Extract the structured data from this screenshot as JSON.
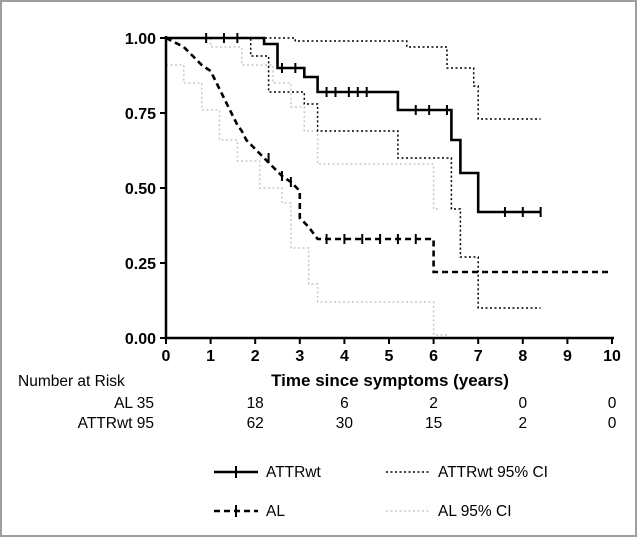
{
  "colors": {
    "attr": "#000000",
    "al": "#000000",
    "attr_ci": "#000000",
    "al_ci": "#c8c8c8",
    "frame": "#9e9e9e"
  },
  "chart_data": {
    "type": "line",
    "title": "",
    "xlabel": "Time since symptoms (years)",
    "ylabel": "",
    "xlim": [
      0,
      10
    ],
    "ylim": [
      0,
      1
    ],
    "x_ticks": [
      "0",
      "1",
      "2",
      "3",
      "4",
      "5",
      "6",
      "7",
      "8",
      "9",
      "10"
    ],
    "y_ticks": [
      "0.00",
      "0.25",
      "0.50",
      "0.75",
      "1.00"
    ],
    "series": [
      {
        "name": "ATTRwt",
        "style": "solid-thick",
        "points": [
          [
            0,
            1.0
          ],
          [
            2.2,
            1.0
          ],
          [
            2.2,
            0.98
          ],
          [
            2.5,
            0.98
          ],
          [
            2.5,
            0.9
          ],
          [
            3.1,
            0.9
          ],
          [
            3.1,
            0.87
          ],
          [
            3.4,
            0.87
          ],
          [
            3.4,
            0.82
          ],
          [
            5.2,
            0.82
          ],
          [
            5.2,
            0.76
          ],
          [
            6.4,
            0.76
          ],
          [
            6.4,
            0.66
          ],
          [
            6.6,
            0.66
          ],
          [
            6.6,
            0.55
          ],
          [
            7.0,
            0.55
          ],
          [
            7.0,
            0.42
          ],
          [
            8.4,
            0.42
          ]
        ],
        "censor_x": [
          0.9,
          1.3,
          1.6,
          2.6,
          2.9,
          3.6,
          3.8,
          4.1,
          4.3,
          4.5,
          5.6,
          5.9,
          6.3,
          7.6,
          8.0,
          8.4
        ]
      },
      {
        "name": "AL",
        "style": "dashed-thick",
        "points": [
          [
            0,
            1.0
          ],
          [
            0.4,
            0.97
          ],
          [
            0.6,
            0.94
          ],
          [
            0.8,
            0.91
          ],
          [
            1.0,
            0.89
          ],
          [
            1.1,
            0.86
          ],
          [
            1.2,
            0.83
          ],
          [
            1.3,
            0.8
          ],
          [
            1.4,
            0.77
          ],
          [
            1.5,
            0.74
          ],
          [
            1.6,
            0.71
          ],
          [
            1.7,
            0.69
          ],
          [
            1.8,
            0.66
          ],
          [
            2.0,
            0.63
          ],
          [
            2.2,
            0.6
          ],
          [
            2.4,
            0.57
          ],
          [
            2.6,
            0.54
          ],
          [
            2.8,
            0.52
          ],
          [
            3.0,
            0.49
          ],
          [
            3.0,
            0.4
          ],
          [
            3.2,
            0.37
          ],
          [
            3.4,
            0.33
          ],
          [
            6.0,
            0.33
          ],
          [
            6.0,
            0.22
          ],
          [
            10,
            0.22
          ]
        ],
        "censor_x": [
          2.3,
          2.6,
          2.8,
          3.6,
          4.0,
          4.4,
          4.8,
          5.2,
          5.6
        ]
      },
      {
        "name": "ATTRwt 95% CI",
        "style": "dotted",
        "lines": [
          [
            [
              0,
              1.0
            ],
            [
              2.9,
              1.0
            ],
            [
              2.9,
              0.99
            ],
            [
              5.4,
              0.99
            ],
            [
              5.4,
              0.97
            ],
            [
              6.3,
              0.97
            ],
            [
              6.3,
              0.9
            ],
            [
              6.9,
              0.9
            ],
            [
              6.9,
              0.84
            ],
            [
              7.0,
              0.84
            ],
            [
              7.0,
              0.73
            ],
            [
              8.4,
              0.73
            ]
          ],
          [
            [
              0,
              1.0
            ],
            [
              1.9,
              1.0
            ],
            [
              1.9,
              0.94
            ],
            [
              2.3,
              0.94
            ],
            [
              2.3,
              0.82
            ],
            [
              3.1,
              0.82
            ],
            [
              3.1,
              0.78
            ],
            [
              3.4,
              0.78
            ],
            [
              3.4,
              0.69
            ],
            [
              5.2,
              0.69
            ],
            [
              5.2,
              0.6
            ],
            [
              6.4,
              0.6
            ],
            [
              6.4,
              0.43
            ],
            [
              6.6,
              0.43
            ],
            [
              6.6,
              0.27
            ],
            [
              7.0,
              0.27
            ],
            [
              7.0,
              0.1
            ],
            [
              8.4,
              0.1
            ]
          ]
        ]
      },
      {
        "name": "AL 95% CI",
        "style": "dotted-grey",
        "lines": [
          [
            [
              0,
              1.0
            ],
            [
              1.0,
              1.0
            ],
            [
              1.0,
              0.97
            ],
            [
              1.7,
              0.97
            ],
            [
              1.7,
              0.91
            ],
            [
              2.4,
              0.91
            ],
            [
              2.4,
              0.85
            ],
            [
              2.8,
              0.85
            ],
            [
              2.8,
              0.77
            ],
            [
              3.1,
              0.77
            ],
            [
              3.1,
              0.69
            ],
            [
              3.4,
              0.69
            ],
            [
              3.4,
              0.58
            ],
            [
              6.0,
              0.58
            ],
            [
              6.0,
              0.43
            ],
            [
              6.1,
              0.43
            ]
          ],
          [
            [
              0,
              0.91
            ],
            [
              0.4,
              0.91
            ],
            [
              0.4,
              0.85
            ],
            [
              0.8,
              0.85
            ],
            [
              0.8,
              0.76
            ],
            [
              1.2,
              0.76
            ],
            [
              1.2,
              0.66
            ],
            [
              1.6,
              0.66
            ],
            [
              1.6,
              0.59
            ],
            [
              2.1,
              0.59
            ],
            [
              2.1,
              0.5
            ],
            [
              2.6,
              0.5
            ],
            [
              2.6,
              0.45
            ],
            [
              2.8,
              0.45
            ],
            [
              2.8,
              0.3
            ],
            [
              3.2,
              0.3
            ],
            [
              3.2,
              0.18
            ],
            [
              3.4,
              0.18
            ],
            [
              3.4,
              0.12
            ],
            [
              6.0,
              0.12
            ],
            [
              6.0,
              0.01
            ],
            [
              6.3,
              0.01
            ]
          ]
        ]
      }
    ],
    "legend": {
      "placement": "bottom",
      "entries": [
        "ATTRwt",
        "ATTRwt 95% CI",
        "AL",
        "AL 95% CI"
      ]
    }
  },
  "risk_table": {
    "header": "Number at Risk",
    "rows": [
      {
        "label": "AL 35",
        "values": [
          "18",
          "6",
          "2",
          "0",
          "0"
        ]
      },
      {
        "label": "ATTRwt 95",
        "values": [
          "62",
          "30",
          "15",
          "2",
          "0"
        ]
      }
    ]
  }
}
